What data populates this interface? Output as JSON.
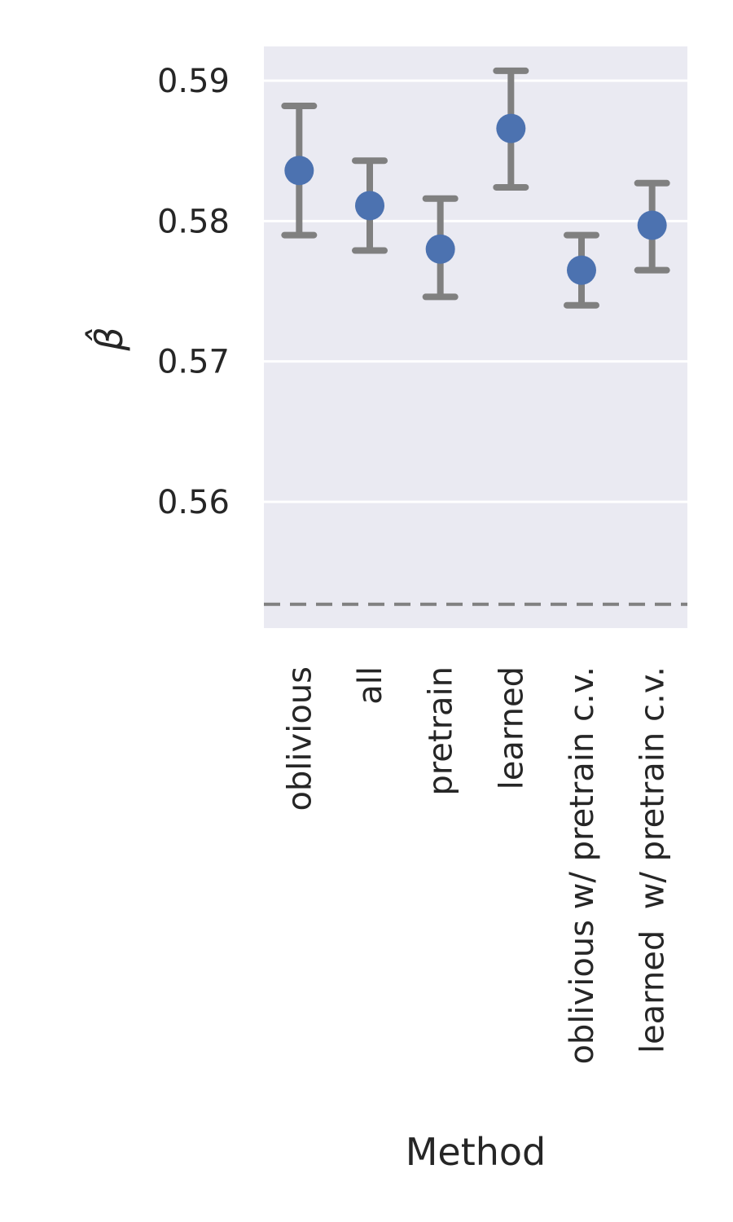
{
  "chart_data": {
    "type": "scatter",
    "xlabel": "Method",
    "ylabel": "β̂",
    "categories": [
      "oblivious",
      "all",
      "pretrain",
      "learned",
      "oblivious w/ pretrain c.v.",
      "learned  w/ pretrain c.v."
    ],
    "values": [
      0.5836,
      0.5811,
      0.578,
      0.5866,
      0.5765,
      0.5797
    ],
    "error_low": [
      0.579,
      0.5779,
      0.5746,
      0.5824,
      0.574,
      0.5765
    ],
    "error_high": [
      0.5882,
      0.5843,
      0.5816,
      0.5907,
      0.579,
      0.5827
    ],
    "reference_line": 0.5527,
    "ylim": [
      0.551,
      0.5925
    ],
    "yticks": [
      "0.56",
      "0.57",
      "0.58",
      "0.59"
    ],
    "ytick_values": [
      0.56,
      0.57,
      0.58,
      0.59
    ],
    "grid": true,
    "colors": {
      "background": "#eaeaf2",
      "grid": "#ffffff",
      "point": "#4c72b0",
      "errorbar": "#808080",
      "reference": "#808080",
      "text": "#262626"
    }
  }
}
